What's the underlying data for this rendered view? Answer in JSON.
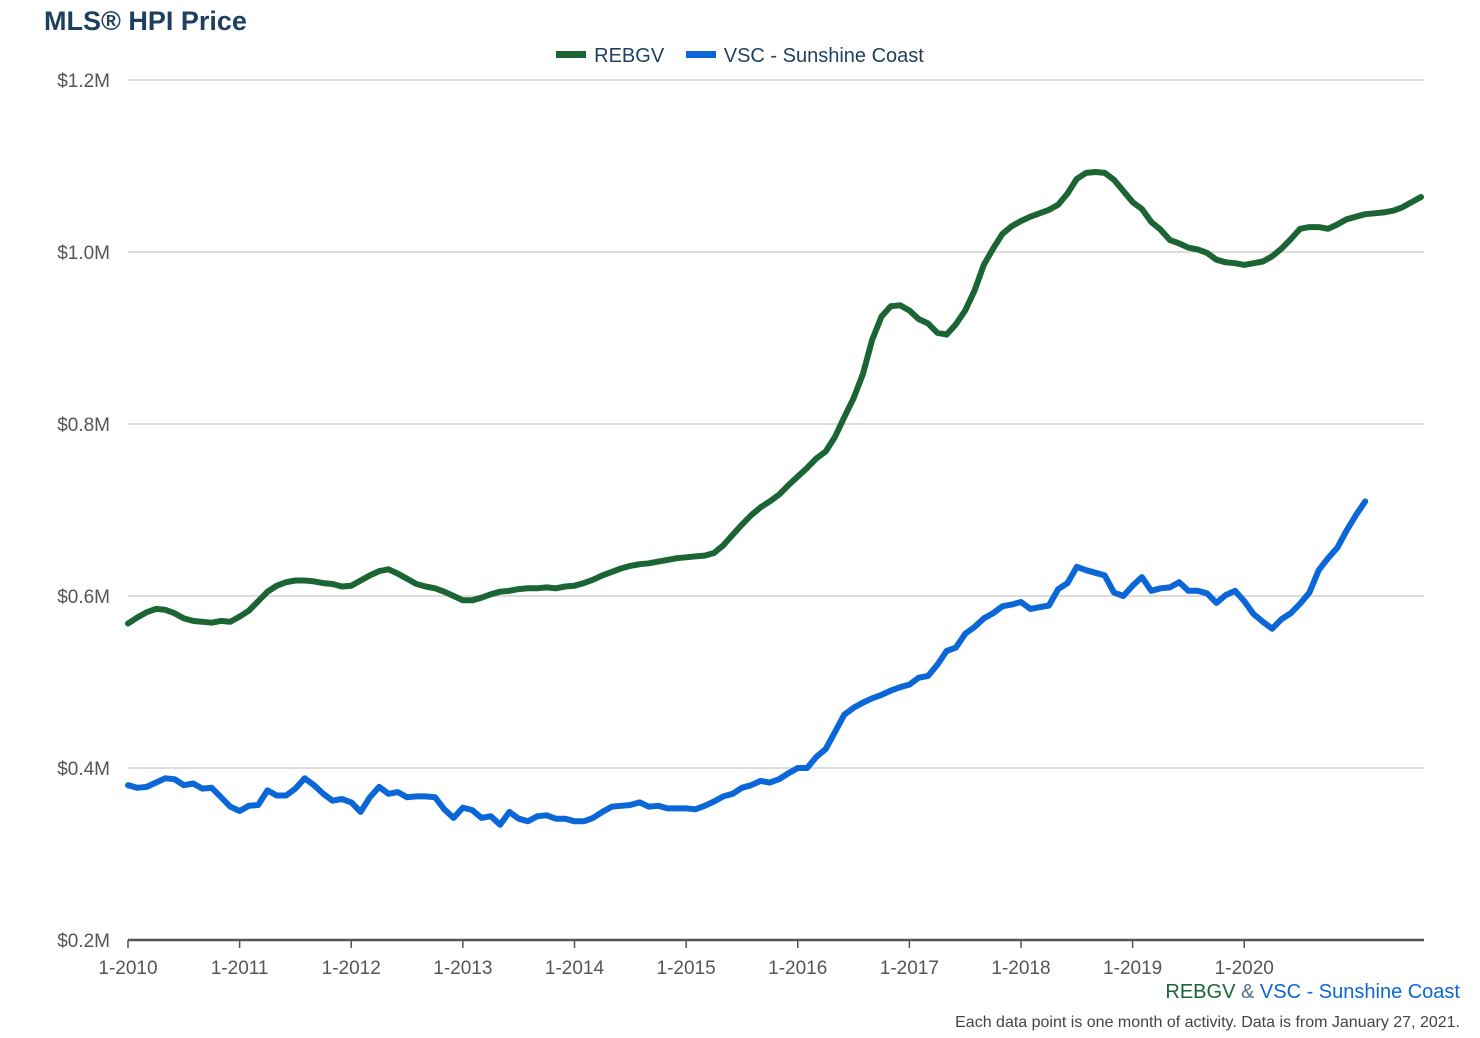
{
  "title": "MLS® HPI Price",
  "footer": {
    "series_a": "REBGV",
    "amp": "&",
    "series_b": "VSC - Sunshine Coast",
    "note": "Each data point is one month of activity. Data is from January 27, 2021."
  },
  "colors": {
    "rebgv": "#1b6535",
    "vsc": "#0b66d8",
    "grid": "#c8c8c8",
    "axis": "#555555"
  },
  "chart_data": {
    "type": "line",
    "title": "MLS® HPI Price",
    "ylim": [
      200000,
      1200000
    ],
    "y_ticks": [
      200000,
      400000,
      600000,
      800000,
      1000000,
      1200000
    ],
    "y_tick_labels": [
      "$0.2M",
      "$0.4M",
      "$0.6M",
      "$0.8M",
      "$1.0M",
      "$1.2M"
    ],
    "x_start": "2010-01",
    "x_end": "2020-12",
    "x_tick_labels": [
      "1-2010",
      "1-2011",
      "1-2012",
      "1-2013",
      "1-2014",
      "1-2015",
      "1-2016",
      "1-2017",
      "1-2018",
      "1-2019",
      "1-2020"
    ],
    "legend_position": "top-center",
    "grid": true,
    "series": [
      {
        "name": "REBGV",
        "color": "#1b6535",
        "values": [
          568000,
          575000,
          581000,
          585000,
          584000,
          580000,
          574000,
          571000,
          570000,
          569000,
          571000,
          570000,
          576000,
          583000,
          594000,
          605000,
          612000,
          616000,
          618000,
          618000,
          617000,
          615000,
          614000,
          611000,
          612000,
          618000,
          624000,
          629000,
          631000,
          626000,
          620000,
          614000,
          611000,
          609000,
          605000,
          600000,
          595000,
          595000,
          598000,
          602000,
          605000,
          606000,
          608000,
          609000,
          609000,
          610000,
          609000,
          611000,
          612000,
          615000,
          619000,
          624000,
          628000,
          632000,
          635000,
          637000,
          638000,
          640000,
          642000,
          644000,
          645000,
          646000,
          647000,
          650000,
          659000,
          671000,
          683000,
          694000,
          703000,
          710000,
          718000,
          729000,
          739000,
          749000,
          760000,
          768000,
          785000,
          808000,
          830000,
          858000,
          898000,
          925000,
          937000,
          938000,
          932000,
          922000,
          917000,
          906000,
          904000,
          916000,
          932000,
          955000,
          985000,
          1004000,
          1021000,
          1030000,
          1036000,
          1041000,
          1045000,
          1049000,
          1055000,
          1068000,
          1085000,
          1092000,
          1093000,
          1092000,
          1084000,
          1071000,
          1058000,
          1050000,
          1035000,
          1026000,
          1014000,
          1010000,
          1005000,
          1003000,
          999000,
          991000,
          988000,
          987000,
          985000,
          987000,
          989000,
          995000,
          1004000,
          1015000,
          1027000,
          1029000,
          1029000,
          1027000,
          1032000,
          1038000,
          1041000,
          1044000,
          1045000,
          1046000,
          1048000,
          1052000,
          1058000,
          1064000
        ]
      },
      {
        "name": "VSC - Sunshine Coast",
        "color": "#0b66d8",
        "values": [
          380000,
          377000,
          378000,
          383000,
          388000,
          387000,
          380000,
          382000,
          376000,
          377000,
          366000,
          355000,
          350000,
          356000,
          357000,
          374000,
          368000,
          368000,
          376000,
          388000,
          380000,
          370000,
          362000,
          364000,
          360000,
          349000,
          366000,
          378000,
          370000,
          372000,
          366000,
          367000,
          367000,
          366000,
          352000,
          342000,
          354000,
          351000,
          342000,
          344000,
          334000,
          349000,
          341000,
          338000,
          344000,
          345000,
          341000,
          341000,
          338000,
          338000,
          342000,
          349000,
          355000,
          356000,
          357000,
          360000,
          355000,
          356000,
          353000,
          353000,
          353000,
          352000,
          356000,
          361000,
          367000,
          370000,
          377000,
          380000,
          385000,
          383000,
          387000,
          394000,
          400000,
          400000,
          413000,
          422000,
          442000,
          462000,
          470000,
          476000,
          481000,
          485000,
          490000,
          494000,
          497000,
          505000,
          507000,
          520000,
          536000,
          540000,
          556000,
          564000,
          574000,
          580000,
          588000,
          590000,
          593000,
          585000,
          587000,
          589000,
          608000,
          615000,
          634000,
          630000,
          627000,
          624000,
          604000,
          600000,
          612000,
          622000,
          606000,
          609000,
          610000,
          616000,
          606000,
          606000,
          603000,
          592000,
          601000,
          606000,
          594000,
          579000,
          570000,
          562000,
          573000,
          580000,
          591000,
          604000,
          630000,
          644000,
          656000,
          676000,
          694000,
          710000
        ]
      }
    ]
  }
}
